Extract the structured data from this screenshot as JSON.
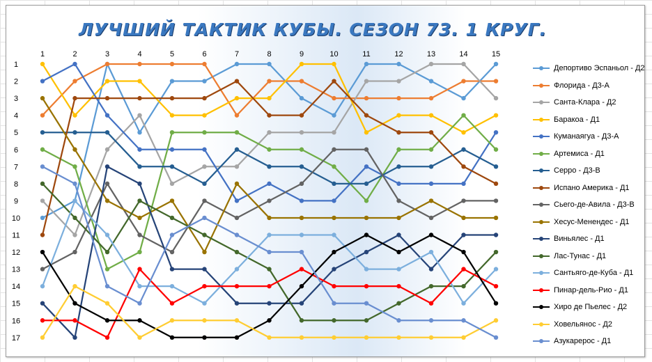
{
  "chart_data": {
    "type": "line",
    "title": "ЛУЧШИЙ ТАКТИК КУБЫ. СЕЗОН 73. 1 КРУГ.",
    "x": [
      1,
      2,
      3,
      4,
      5,
      6,
      7,
      8,
      9,
      10,
      11,
      12,
      13,
      14,
      15
    ],
    "yticks": [
      1,
      2,
      3,
      4,
      5,
      6,
      7,
      8,
      9,
      10,
      11,
      12,
      13,
      14,
      15,
      16,
      17
    ],
    "ylim": [
      1,
      17
    ],
    "y_reversed": true,
    "xaxis_position": "top",
    "legend_position": "right",
    "grid": false,
    "series": [
      {
        "name": "Депортиво Эспаньол - Д2",
        "color": "#5b9bd5",
        "values": [
          10,
          9,
          1,
          5,
          2,
          2,
          1,
          1,
          3,
          4,
          1,
          1,
          2,
          3,
          1
        ]
      },
      {
        "name": "Флорида - Д3-А",
        "color": "#ed7d31",
        "values": [
          4,
          2,
          1,
          1,
          1,
          1,
          4,
          2,
          2,
          3,
          3,
          3,
          3,
          2,
          2
        ]
      },
      {
        "name": "Санта-Клара - Д2",
        "color": "#a5a5a5",
        "values": [
          9,
          11,
          6,
          4,
          8,
          7,
          7,
          5,
          5,
          5,
          2,
          2,
          1,
          1,
          3
        ]
      },
      {
        "name": "Баракоа - Д1",
        "color": "#ffc000",
        "values": [
          1,
          4,
          2,
          2,
          4,
          4,
          3,
          3,
          1,
          1,
          5,
          4,
          4,
          5,
          4
        ]
      },
      {
        "name": "Куманаягуа - Д3-А",
        "color": "#4472c4",
        "values": [
          2,
          1,
          4,
          6,
          6,
          6,
          9,
          8,
          9,
          9,
          7,
          8,
          8,
          8,
          5
        ]
      },
      {
        "name": "Артемиса - Д1",
        "color": "#70ad47",
        "values": [
          6,
          7,
          13,
          12,
          5,
          5,
          5,
          6,
          6,
          7,
          9,
          6,
          6,
          4,
          6
        ]
      },
      {
        "name": "Серро - Д3-В",
        "color": "#255e91",
        "values": [
          5,
          5,
          5,
          7,
          7,
          8,
          6,
          7,
          7,
          8,
          8,
          7,
          7,
          6,
          7
        ]
      },
      {
        "name": "Испано Америка - Д1",
        "color": "#9e480e",
        "values": [
          11,
          3,
          3,
          3,
          3,
          3,
          2,
          4,
          4,
          2,
          4,
          5,
          5,
          7,
          8
        ]
      },
      {
        "name": "Сьего-де-Авила - Д3-В",
        "color": "#636363",
        "values": [
          13,
          12,
          8,
          11,
          12,
          9,
          10,
          9,
          8,
          6,
          6,
          9,
          10,
          9,
          9
        ]
      },
      {
        "name": "Хесус-Менендес - Д1",
        "color": "#997300",
        "values": [
          3,
          6,
          9,
          10,
          9,
          12,
          8,
          10,
          10,
          10,
          10,
          10,
          9,
          10,
          10
        ]
      },
      {
        "name": "Виньялес - Д1",
        "color": "#264478",
        "values": [
          15,
          17,
          7,
          8,
          13,
          13,
          15,
          15,
          15,
          13,
          12,
          11,
          13,
          11,
          11
        ]
      },
      {
        "name": "Лас-Тунас - Д1",
        "color": "#43682b",
        "values": [
          8,
          10,
          12,
          9,
          10,
          11,
          12,
          13,
          16,
          16,
          16,
          15,
          14,
          14,
          12
        ]
      },
      {
        "name": "Сантьяго-де-Куба - Д1",
        "color": "#7cafdd",
        "values": [
          14,
          9,
          11,
          14,
          14,
          15,
          13,
          11,
          11,
          11,
          13,
          13,
          12,
          15,
          13
        ]
      },
      {
        "name": "Пинар-дель-Рио - Д1",
        "color": "#ff0000",
        "values": [
          16,
          16,
          17,
          13,
          15,
          14,
          14,
          14,
          13,
          14,
          14,
          14,
          15,
          13,
          14
        ]
      },
      {
        "name": "Хиро де Пьелес - Д2",
        "color": "#000000",
        "values": [
          12,
          15,
          16,
          16,
          17,
          17,
          17,
          16,
          14,
          12,
          11,
          12,
          11,
          12,
          15
        ]
      },
      {
        "name": "Ховельянос - Д2",
        "color": "#ffcd33",
        "values": [
          17,
          14,
          15,
          17,
          16,
          16,
          16,
          17,
          17,
          17,
          17,
          17,
          17,
          17,
          16
        ]
      },
      {
        "name": "Азукарерос - Д1",
        "color": "#698ed0",
        "values": [
          7,
          8,
          14,
          15,
          11,
          10,
          11,
          12,
          12,
          15,
          15,
          16,
          16,
          16,
          17
        ]
      }
    ]
  }
}
